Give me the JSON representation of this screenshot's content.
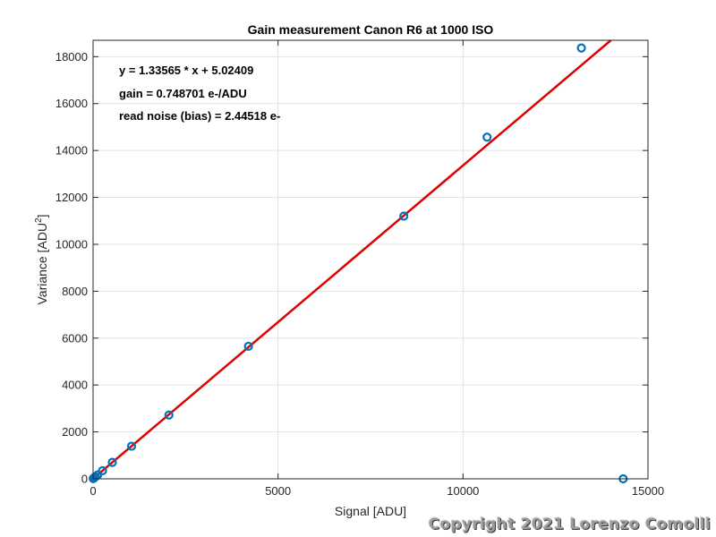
{
  "chart_data": {
    "type": "scatter",
    "title": "Gain measurement Canon R6 at 1000 ISO",
    "xlabel": "Signal [ADU]",
    "ylabel_main": "Variance [ADU",
    "ylabel_sup": "2",
    "ylabel_end": "]",
    "xlim": [
      0,
      15000
    ],
    "ylim": [
      0,
      18700
    ],
    "x_ticks": [
      0,
      5000,
      10000,
      15000
    ],
    "x_tick_labels": [
      "0",
      "5000",
      "10000",
      "15000"
    ],
    "y_ticks": [
      0,
      2000,
      4000,
      6000,
      8000,
      10000,
      12000,
      14000,
      16000,
      18000
    ],
    "y_tick_labels": [
      "0",
      "2000",
      "4000",
      "6000",
      "8000",
      "10000",
      "12000",
      "14000",
      "16000",
      "18000"
    ],
    "grid": true,
    "series": [
      {
        "kind": "markers",
        "marker": "circle",
        "color": "#0072BD",
        "x": [
          5,
          15,
          30,
          60,
          125,
          255,
          520,
          1040,
          2050,
          4200,
          8400,
          10650,
          13200,
          14330
        ],
        "y": [
          10,
          25,
          45,
          85,
          170,
          345,
          700,
          1390,
          2720,
          5650,
          11200,
          14570,
          18370,
          0
        ]
      },
      {
        "kind": "fit-line",
        "color": "#E00000",
        "slope": 1.33565,
        "intercept": 5.02409,
        "x_range": [
          0,
          14200
        ]
      }
    ],
    "annotations": [
      "y = 1.33565 * x + 5.02409",
      "gain = 0.748701 e-/ADU",
      "read noise (bias) = 2.44518 e-"
    ]
  },
  "watermark": "Copyright 2021 Lorenzo Comolli"
}
